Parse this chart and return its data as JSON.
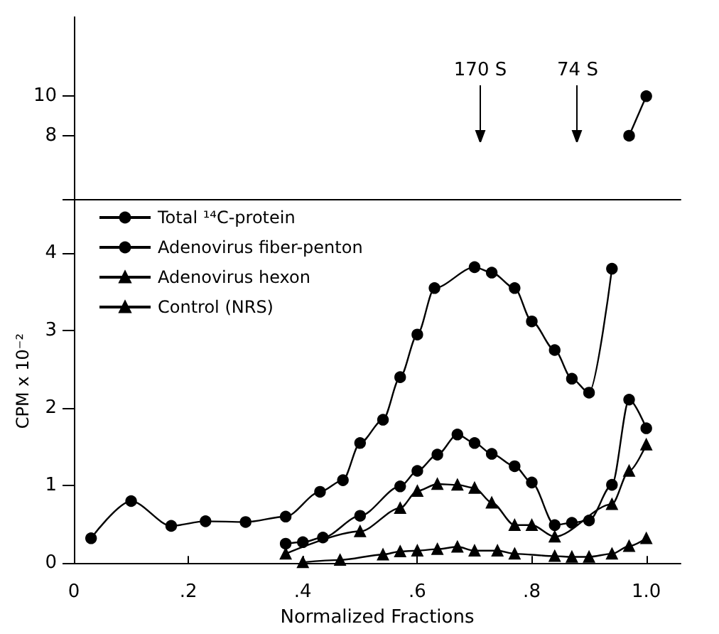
{
  "chart_data": [
    {
      "type": "line",
      "xlim": [
        0,
        1.06
      ],
      "ylim": [
        4.8,
        14
      ],
      "yticks": [
        8,
        10
      ],
      "grid": false,
      "legend": false,
      "line_style": "solid",
      "ref_lines": [
        {
          "axis": "x",
          "value": 0.71,
          "label": "170 S"
        },
        {
          "axis": "x",
          "value": 0.88,
          "label": "74 S"
        }
      ],
      "series": [
        {
          "color": "#000000",
          "marker": "circle",
          "x": [
            0.97,
            1.0
          ],
          "values": [
            8,
            10
          ]
        }
      ]
    },
    {
      "type": "line",
      "xlabel": "Normalized Fractions",
      "ylabel": "CPM x 10⁻²",
      "xlim": [
        0,
        1.06
      ],
      "xticks": [
        {
          "value": 0,
          "label": "0"
        },
        {
          "value": 0.2,
          "label": ".2"
        },
        {
          "value": 0.4,
          "label": ".4"
        },
        {
          "value": 0.6,
          "label": ".6"
        },
        {
          "value": 0.8,
          "label": ".8"
        },
        {
          "value": 1,
          "label": "1.0"
        }
      ],
      "ylim": [
        0,
        4.7
      ],
      "yticks": [
        0,
        1,
        2,
        3,
        4
      ],
      "grid": false,
      "legend": "top left",
      "line_style": "solid",
      "series": [
        {
          "name": "Total ¹⁴C-protein",
          "color": "#000000",
          "marker": "circle",
          "x": [
            0.03,
            0.1,
            0.17,
            0.23,
            0.3,
            0.37,
            0.43,
            0.47,
            0.5,
            0.54,
            0.57,
            0.6,
            0.63,
            0.7,
            0.73,
            0.77,
            0.8,
            0.84,
            0.87,
            0.9,
            0.94
          ],
          "values": [
            0.32,
            0.8,
            0.48,
            0.54,
            0.53,
            0.6,
            0.92,
            1.07,
            1.55,
            1.85,
            2.4,
            2.95,
            3.55,
            3.82,
            3.75,
            3.55,
            3.12,
            2.75,
            2.38,
            2.2,
            3.8
          ]
        },
        {
          "name": "Adenovirus fiber-penton",
          "color": "#000000",
          "marker": "circle",
          "x": [
            0.37,
            0.4,
            0.435,
            0.5,
            0.57,
            0.6,
            0.635,
            0.67,
            0.7,
            0.73,
            0.77,
            0.8,
            0.84,
            0.87,
            0.9,
            0.94,
            0.97,
            1.0
          ],
          "values": [
            0.25,
            0.27,
            0.33,
            0.61,
            0.99,
            1.19,
            1.4,
            1.66,
            1.55,
            1.41,
            1.25,
            1.04,
            0.49,
            0.52,
            0.55,
            1.01,
            2.11,
            1.74
          ]
        },
        {
          "name": "Adenovirus hexon",
          "color": "#000000",
          "marker": "triangle",
          "x": [
            0.37,
            0.5,
            0.57,
            0.6,
            0.635,
            0.67,
            0.7,
            0.73,
            0.77,
            0.8,
            0.84,
            0.94,
            0.97,
            1.0
          ],
          "values": [
            0.12,
            0.41,
            0.71,
            0.93,
            1.02,
            1.01,
            0.97,
            0.78,
            0.49,
            0.49,
            0.34,
            0.76,
            1.19,
            1.53
          ]
        },
        {
          "name": "Control (NRS)",
          "color": "#000000",
          "marker": "triangle",
          "x": [
            0.4,
            0.465,
            0.54,
            0.57,
            0.6,
            0.635,
            0.67,
            0.7,
            0.74,
            0.77,
            0.84,
            0.87,
            0.9,
            0.94,
            0.97,
            1.0
          ],
          "values": [
            0.01,
            0.04,
            0.11,
            0.15,
            0.16,
            0.18,
            0.21,
            0.16,
            0.16,
            0.12,
            0.09,
            0.08,
            0.08,
            0.12,
            0.22,
            0.32
          ]
        }
      ]
    }
  ]
}
